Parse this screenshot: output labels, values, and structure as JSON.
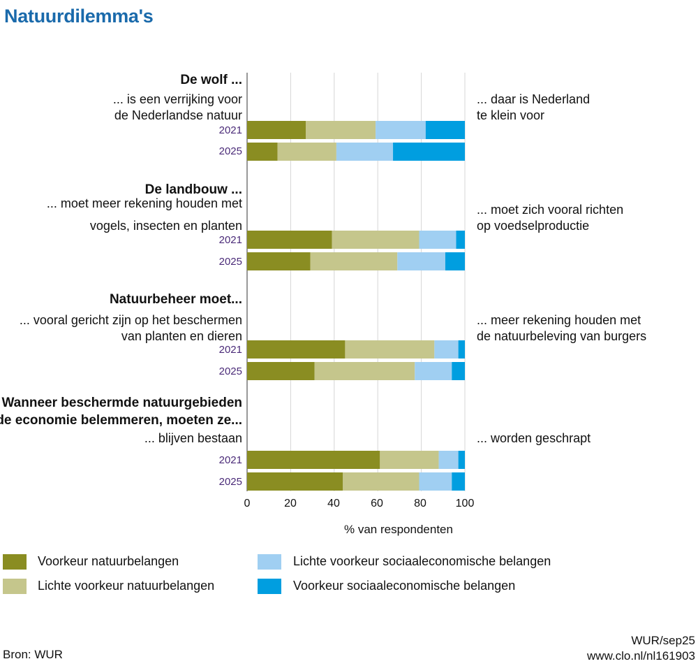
{
  "title": "Natuurdilemma's",
  "chart_data": {
    "type": "bar",
    "orientation": "horizontal",
    "stacked": true,
    "xlabel": "% van respondenten",
    "xlim": [
      0,
      100
    ],
    "xticks": [
      "0",
      "20",
      "40",
      "60",
      "80",
      "100"
    ],
    "series": [
      {
        "name": "Voorkeur natuurbelangen",
        "color": "#8a8d22"
      },
      {
        "name": "Lichte voorkeur natuurbelangen",
        "color": "#c5c68c"
      },
      {
        "name": "Lichte voorkeur sociaaleconomische belangen",
        "color": "#a0cff2"
      },
      {
        "name": "Voorkeur sociaaleconomische belangen",
        "color": "#009ee0"
      }
    ],
    "groups": [
      {
        "heading": [
          "De wolf ..."
        ],
        "left": [
          "... is een verrijking voor",
          "de Nederlandse natuur"
        ],
        "right": [
          "... daar is Nederland",
          "te klein voor"
        ],
        "bars": [
          {
            "year": "2021",
            "values": [
              27,
              32,
              23,
              18
            ]
          },
          {
            "year": "2025",
            "values": [
              14,
              27,
              26,
              33
            ]
          }
        ]
      },
      {
        "heading": [
          "De landbouw ..."
        ],
        "left": [
          "... moet meer rekening houden met",
          "vogels, insecten en planten"
        ],
        "right": [
          "... moet zich vooral richten",
          "op voedselproductie"
        ],
        "bars": [
          {
            "year": "2021",
            "values": [
              39,
              40,
              17,
              4
            ]
          },
          {
            "year": "2025",
            "values": [
              29,
              40,
              22,
              9
            ]
          }
        ]
      },
      {
        "heading": [
          "Natuurbeheer moet..."
        ],
        "left": [
          "... vooral gericht zijn op het beschermen",
          "van planten en dieren"
        ],
        "right": [
          "... meer rekening houden met",
          "de natuurbeleving van burgers"
        ],
        "bars": [
          {
            "year": "2021",
            "values": [
              45,
              41,
              11,
              3
            ]
          },
          {
            "year": "2025",
            "values": [
              31,
              46,
              17,
              6
            ]
          }
        ]
      },
      {
        "heading": [
          "Wanneer beschermde natuurgebieden",
          "de economie belemmeren, moeten ze..."
        ],
        "left": [
          "... blijven bestaan"
        ],
        "right": [
          "... worden geschrapt"
        ],
        "bars": [
          {
            "year": "2021",
            "values": [
              61,
              27,
              9,
              3
            ]
          },
          {
            "year": "2025",
            "values": [
              44,
              35,
              15,
              6
            ]
          }
        ]
      }
    ]
  },
  "footer": {
    "source": "Bron: WUR",
    "credit": "WUR/sep25",
    "url": "www.clo.nl/nl161903"
  }
}
